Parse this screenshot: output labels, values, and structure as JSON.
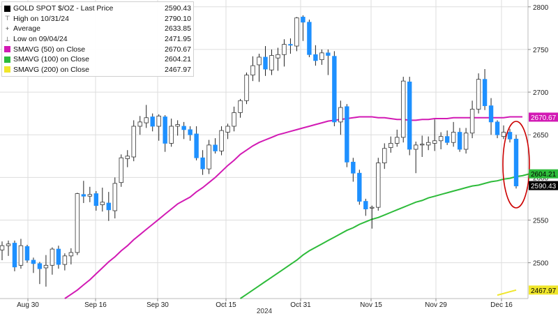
{
  "chart_data": {
    "type": "candlestick",
    "title": "GOLD SPOT $/OZ - Last Price",
    "year_label": "2024",
    "x_tick_labels": [
      "Aug 30",
      "Sep 16",
      "Sep 30",
      "Oct 15",
      "Oct 31",
      "Nov 15",
      "Nov 29",
      "Dec 16"
    ],
    "y_tick_labels": [
      "2500",
      "2550",
      "2600",
      "2650",
      "2700",
      "2750",
      "2800"
    ],
    "ylim": [
      2458,
      2808
    ],
    "grid": true,
    "legend_position": "top-left",
    "legend": [
      {
        "label": "GOLD SPOT $/OZ - Last Price",
        "value": "2590.43",
        "symbol": "black-square",
        "color": "#000000"
      },
      {
        "label": "High on 10/31/24",
        "value": "2790.10",
        "symbol": "high-marker",
        "color": "#444444"
      },
      {
        "label": "Average",
        "value": "2633.85",
        "symbol": "average-marker",
        "color": "#444444"
      },
      {
        "label": "Low on 09/04/24",
        "value": "2471.95",
        "symbol": "low-marker",
        "color": "#444444"
      },
      {
        "label": "SMAVG (50)  on Close",
        "value": "2670.67",
        "symbol": "magenta-square",
        "color": "#d21ab4"
      },
      {
        "label": "SMAVG (100)  on Close",
        "value": "2604.21",
        "symbol": "green-square",
        "color": "#2dbb3a"
      },
      {
        "label": "SMAVG (200)  on Close",
        "value": "2467.97",
        "symbol": "yellow-square",
        "color": "#f0e62b"
      }
    ],
    "right_labels": [
      {
        "value": 2670.67,
        "text": "2670.67",
        "color": "#d21ab4",
        "text_color": "#ffffff"
      },
      {
        "value": 2604.21,
        "text": "2604.21",
        "color": "#2dbb3a",
        "text_color": "#000000"
      },
      {
        "value": 2590.43,
        "text": "2590.43",
        "color": "#000000",
        "text_color": "#ffffff"
      },
      {
        "value": 2467.97,
        "text": "2467.97",
        "color": "#f0e62b",
        "text_color": "#000000"
      }
    ],
    "colors": {
      "up": "#ffffff",
      "down": "#1e90ff",
      "wick": "#222222",
      "grid": "#dddddd",
      "highlight": "#cc0000"
    },
    "annotation": {
      "type": "ellipse",
      "color": "#cc0000",
      "description": "red circle around latest candles"
    },
    "candles": [
      {
        "o": 2515,
        "h": 2525,
        "l": 2503,
        "c": 2520
      },
      {
        "o": 2520,
        "h": 2526,
        "l": 2508,
        "c": 2522
      },
      {
        "o": 2523,
        "h": 2526,
        "l": 2490,
        "c": 2495
      },
      {
        "o": 2497,
        "h": 2528,
        "l": 2493,
        "c": 2520
      },
      {
        "o": 2519,
        "h": 2521,
        "l": 2500,
        "c": 2503
      },
      {
        "o": 2503,
        "h": 2506,
        "l": 2488,
        "c": 2499
      },
      {
        "o": 2499,
        "h": 2501,
        "l": 2475,
        "c": 2493
      },
      {
        "o": 2494,
        "h": 2509,
        "l": 2472,
        "c": 2497
      },
      {
        "o": 2497,
        "h": 2518,
        "l": 2486,
        "c": 2516
      },
      {
        "o": 2516,
        "h": 2520,
        "l": 2493,
        "c": 2498
      },
      {
        "o": 2498,
        "h": 2511,
        "l": 2491,
        "c": 2508
      },
      {
        "o": 2508,
        "h": 2517,
        "l": 2498,
        "c": 2512
      },
      {
        "o": 2512,
        "h": 2582,
        "l": 2509,
        "c": 2581
      },
      {
        "o": 2580,
        "h": 2596,
        "l": 2570,
        "c": 2578
      },
      {
        "o": 2578,
        "h": 2589,
        "l": 2571,
        "c": 2580
      },
      {
        "o": 2581,
        "h": 2584,
        "l": 2561,
        "c": 2567
      },
      {
        "o": 2568,
        "h": 2588,
        "l": 2560,
        "c": 2571
      },
      {
        "o": 2570,
        "h": 2583,
        "l": 2549,
        "c": 2562
      },
      {
        "o": 2561,
        "h": 2600,
        "l": 2552,
        "c": 2593
      },
      {
        "o": 2594,
        "h": 2627,
        "l": 2589,
        "c": 2623
      },
      {
        "o": 2622,
        "h": 2632,
        "l": 2612,
        "c": 2625
      },
      {
        "o": 2624,
        "h": 2667,
        "l": 2619,
        "c": 2660
      },
      {
        "o": 2660,
        "h": 2672,
        "l": 2650,
        "c": 2665
      },
      {
        "o": 2664,
        "h": 2685,
        "l": 2658,
        "c": 2670
      },
      {
        "o": 2671,
        "h": 2675,
        "l": 2654,
        "c": 2660
      },
      {
        "o": 2660,
        "h": 2674,
        "l": 2643,
        "c": 2672
      },
      {
        "o": 2671,
        "h": 2673,
        "l": 2630,
        "c": 2640
      },
      {
        "o": 2640,
        "h": 2669,
        "l": 2636,
        "c": 2660
      },
      {
        "o": 2660,
        "h": 2667,
        "l": 2649,
        "c": 2662
      },
      {
        "o": 2660,
        "h": 2665,
        "l": 2645,
        "c": 2656
      },
      {
        "o": 2656,
        "h": 2660,
        "l": 2643,
        "c": 2650
      },
      {
        "o": 2651,
        "h": 2660,
        "l": 2620,
        "c": 2623
      },
      {
        "o": 2623,
        "h": 2632,
        "l": 2603,
        "c": 2610
      },
      {
        "o": 2610,
        "h": 2644,
        "l": 2604,
        "c": 2638
      },
      {
        "o": 2638,
        "h": 2646,
        "l": 2628,
        "c": 2631
      },
      {
        "o": 2631,
        "h": 2660,
        "l": 2626,
        "c": 2655
      },
      {
        "o": 2653,
        "h": 2663,
        "l": 2645,
        "c": 2660
      },
      {
        "o": 2660,
        "h": 2683,
        "l": 2654,
        "c": 2676
      },
      {
        "o": 2676,
        "h": 2692,
        "l": 2670,
        "c": 2690
      },
      {
        "o": 2690,
        "h": 2723,
        "l": 2686,
        "c": 2720
      },
      {
        "o": 2720,
        "h": 2742,
        "l": 2713,
        "c": 2731
      },
      {
        "o": 2732,
        "h": 2745,
        "l": 2712,
        "c": 2741
      },
      {
        "o": 2741,
        "h": 2754,
        "l": 2719,
        "c": 2727
      },
      {
        "o": 2726,
        "h": 2750,
        "l": 2720,
        "c": 2743
      },
      {
        "o": 2740,
        "h": 2752,
        "l": 2725,
        "c": 2744
      },
      {
        "o": 2744,
        "h": 2762,
        "l": 2730,
        "c": 2756
      },
      {
        "o": 2756,
        "h": 2763,
        "l": 2745,
        "c": 2755
      },
      {
        "o": 2754,
        "h": 2788,
        "l": 2748,
        "c": 2787
      },
      {
        "o": 2788,
        "h": 2790,
        "l": 2760,
        "c": 2782
      },
      {
        "o": 2782,
        "h": 2785,
        "l": 2741,
        "c": 2744
      },
      {
        "o": 2744,
        "h": 2755,
        "l": 2731,
        "c": 2737
      },
      {
        "o": 2738,
        "h": 2750,
        "l": 2732,
        "c": 2746
      },
      {
        "o": 2746,
        "h": 2750,
        "l": 2720,
        "c": 2743
      },
      {
        "o": 2742,
        "h": 2748,
        "l": 2660,
        "c": 2665
      },
      {
        "o": 2665,
        "h": 2690,
        "l": 2650,
        "c": 2682
      },
      {
        "o": 2683,
        "h": 2686,
        "l": 2612,
        "c": 2618
      },
      {
        "o": 2618,
        "h": 2623,
        "l": 2595,
        "c": 2605
      },
      {
        "o": 2605,
        "h": 2609,
        "l": 2568,
        "c": 2572
      },
      {
        "o": 2572,
        "h": 2575,
        "l": 2555,
        "c": 2563
      },
      {
        "o": 2564,
        "h": 2567,
        "l": 2540,
        "c": 2565
      },
      {
        "o": 2565,
        "h": 2623,
        "l": 2561,
        "c": 2617
      },
      {
        "o": 2617,
        "h": 2640,
        "l": 2610,
        "c": 2634
      },
      {
        "o": 2635,
        "h": 2648,
        "l": 2629,
        "c": 2640
      },
      {
        "o": 2640,
        "h": 2656,
        "l": 2636,
        "c": 2647
      },
      {
        "o": 2647,
        "h": 2718,
        "l": 2641,
        "c": 2713
      },
      {
        "o": 2712,
        "h": 2718,
        "l": 2626,
        "c": 2633
      },
      {
        "o": 2633,
        "h": 2642,
        "l": 2605,
        "c": 2638
      },
      {
        "o": 2638,
        "h": 2649,
        "l": 2624,
        "c": 2639
      },
      {
        "o": 2638,
        "h": 2648,
        "l": 2632,
        "c": 2641
      },
      {
        "o": 2640,
        "h": 2668,
        "l": 2631,
        "c": 2643
      },
      {
        "o": 2643,
        "h": 2653,
        "l": 2633,
        "c": 2648
      },
      {
        "o": 2648,
        "h": 2655,
        "l": 2638,
        "c": 2641
      },
      {
        "o": 2641,
        "h": 2665,
        "l": 2636,
        "c": 2653
      },
      {
        "o": 2653,
        "h": 2658,
        "l": 2630,
        "c": 2633
      },
      {
        "o": 2633,
        "h": 2658,
        "l": 2628,
        "c": 2652
      },
      {
        "o": 2652,
        "h": 2690,
        "l": 2646,
        "c": 2680
      },
      {
        "o": 2680,
        "h": 2722,
        "l": 2675,
        "c": 2715
      },
      {
        "o": 2715,
        "h": 2727,
        "l": 2679,
        "c": 2684
      },
      {
        "o": 2684,
        "h": 2693,
        "l": 2650,
        "c": 2665
      },
      {
        "o": 2665,
        "h": 2667,
        "l": 2646,
        "c": 2650
      },
      {
        "o": 2648,
        "h": 2661,
        "l": 2645,
        "c": 2653
      },
      {
        "o": 2653,
        "h": 2657,
        "l": 2641,
        "c": 2645
      },
      {
        "o": 2645,
        "h": 2650,
        "l": 2587,
        "c": 2590
      }
    ],
    "series": [
      {
        "name": "SMAVG (50)  on Close",
        "color": "#d21ab4",
        "start_index": 10,
        "values": [
          2458,
          2463,
          2468,
          2474,
          2480,
          2487,
          2494,
          2501,
          2507,
          2514,
          2520,
          2527,
          2533,
          2539,
          2545,
          2551,
          2557,
          2563,
          2569,
          2573,
          2577,
          2583,
          2588,
          2594,
          2600,
          2607,
          2614,
          2620,
          2627,
          2632,
          2637,
          2641,
          2644,
          2647,
          2650,
          2652,
          2654,
          2656,
          2658,
          2660,
          2662,
          2664,
          2666,
          2667,
          2668,
          2669,
          2670,
          2671,
          2671,
          2671,
          2670,
          2670,
          2669,
          2668,
          2668,
          2667,
          2667,
          2668,
          2668,
          2669,
          2669,
          2669,
          2670,
          2670,
          2670,
          2670,
          2670,
          2670,
          2670,
          2670,
          2670,
          2671,
          2671,
          2671
        ]
      },
      {
        "name": "SMAVG (100)  on Close",
        "color": "#2dbb3a",
        "start_index": 38,
        "values": [
          2458,
          2463,
          2468,
          2473,
          2478,
          2483,
          2488,
          2493,
          2498,
          2503,
          2509,
          2514,
          2518,
          2522,
          2526,
          2530,
          2534,
          2538,
          2541,
          2545,
          2548,
          2551,
          2553,
          2556,
          2559,
          2562,
          2565,
          2568,
          2571,
          2573,
          2576,
          2578,
          2580,
          2582,
          2584,
          2586,
          2588,
          2590,
          2591,
          2593,
          2595,
          2596,
          2598,
          2599,
          2601,
          2602,
          2604
        ]
      },
      {
        "name": "SMAVG (200)  on Close",
        "color": "#f0e62b",
        "start_index": 79,
        "values": [
          2462,
          2464,
          2466,
          2468
        ]
      }
    ]
  }
}
